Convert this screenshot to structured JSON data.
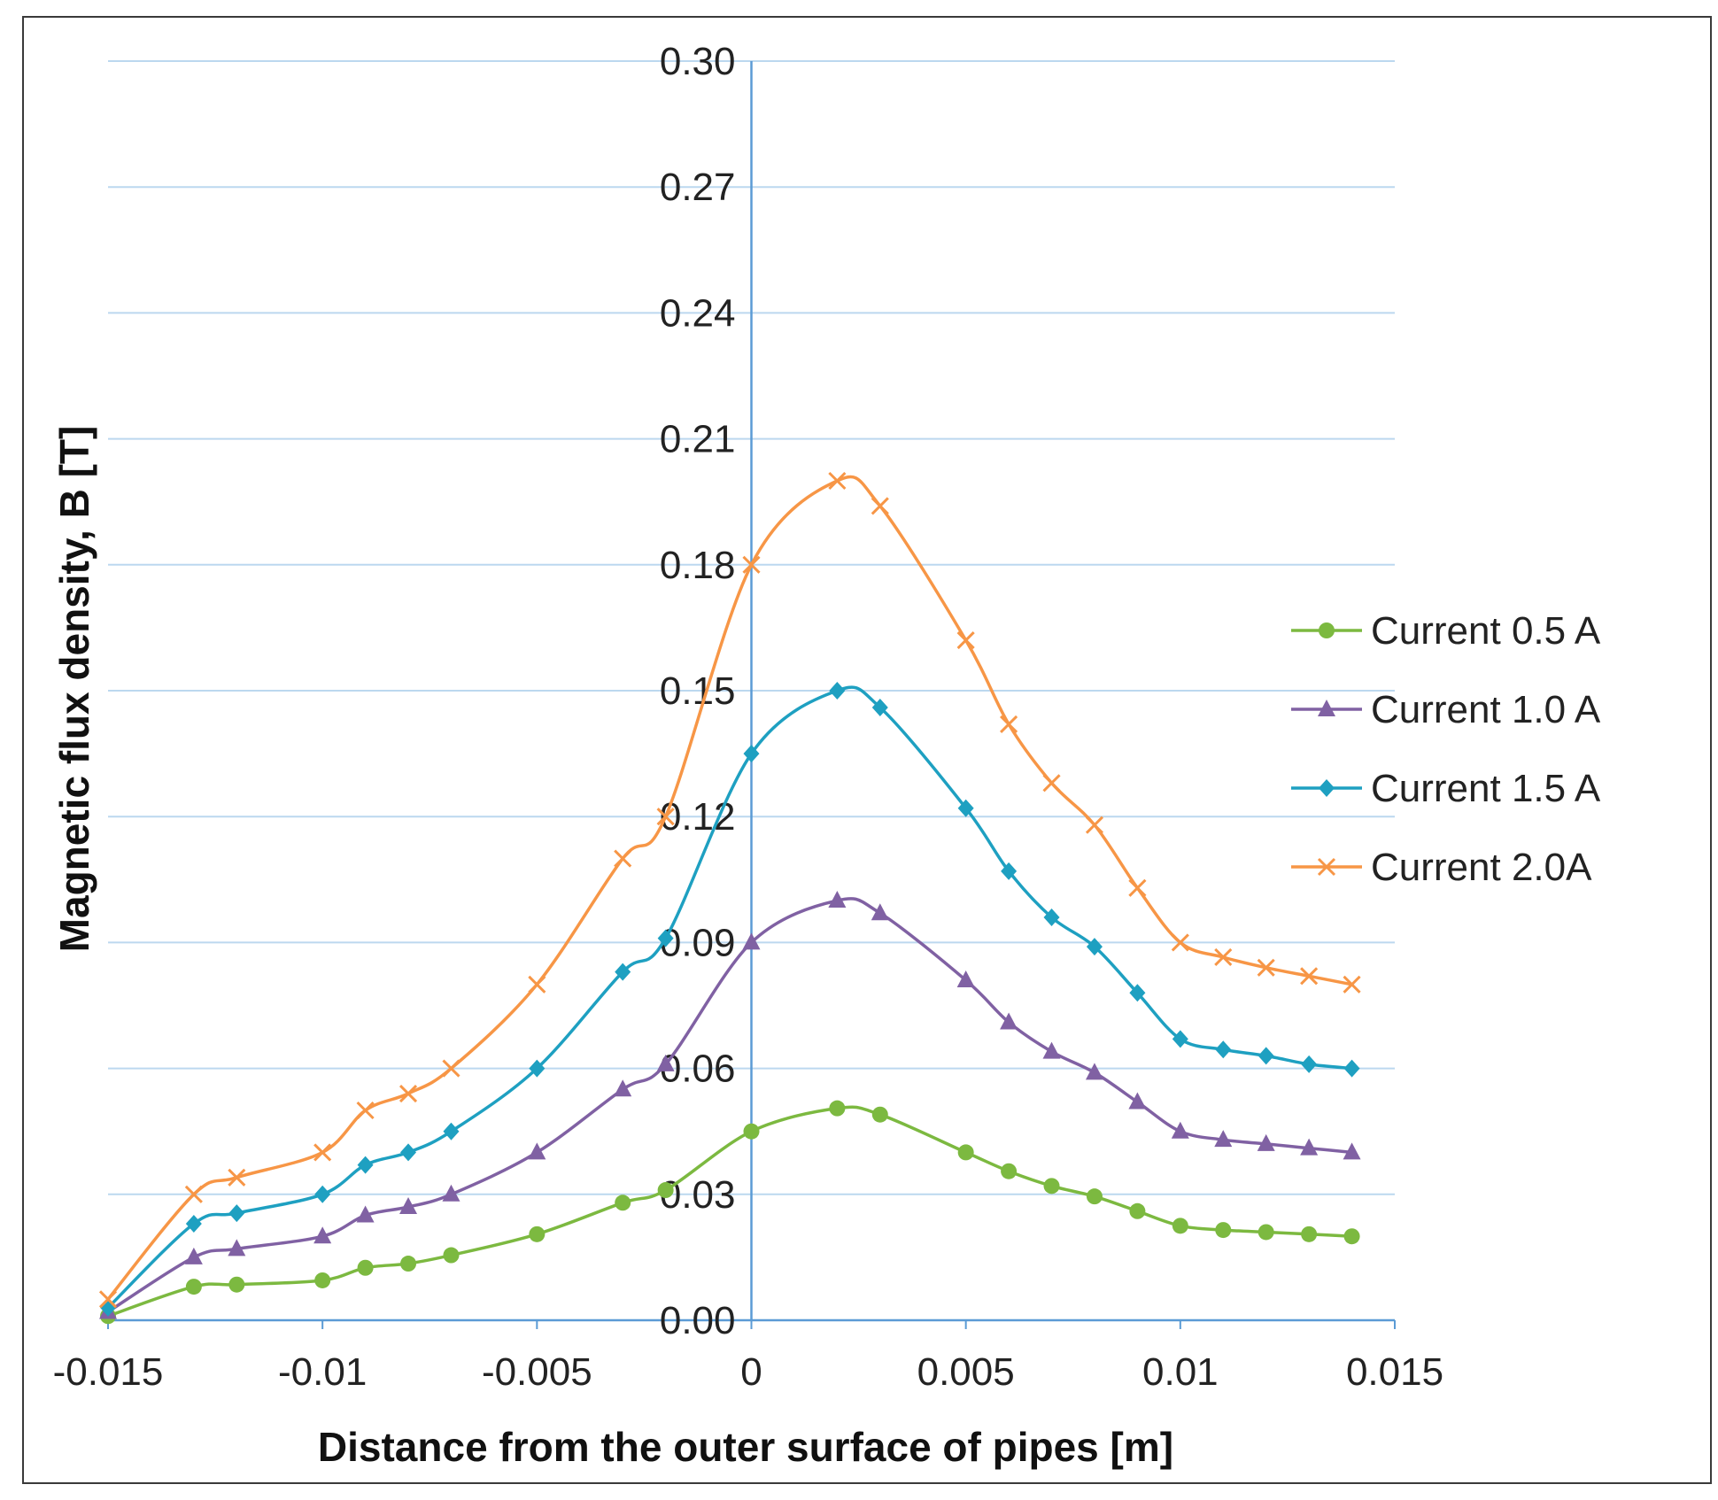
{
  "chart_data": {
    "type": "line",
    "title": "",
    "xlabel": "Distance from the outer surface of pipes [m]",
    "ylabel": "Magnetic flux density, B [T]",
    "xlim": [
      -0.015,
      0.015
    ],
    "ylim": [
      0,
      0.3
    ],
    "x_ticks": [
      "-0.015",
      "-0.01",
      "-0.005",
      "0",
      "0.005",
      "0.01",
      "0.015"
    ],
    "x_tick_values": [
      -0.015,
      -0.01,
      -0.005,
      0,
      0.005,
      0.01,
      0.015
    ],
    "y_ticks": [
      "0.00",
      "0.03",
      "0.06",
      "0.09",
      "0.12",
      "0.15",
      "0.18",
      "0.21",
      "0.24",
      "0.27",
      "0.30"
    ],
    "y_tick_values": [
      0,
      0.03,
      0.06,
      0.09,
      0.12,
      0.15,
      0.18,
      0.21,
      0.24,
      0.27,
      0.3
    ],
    "grid": true,
    "legend_position": "right",
    "x": [
      -0.015,
      -0.013,
      -0.012,
      -0.01,
      -0.009,
      -0.008,
      -0.007,
      -0.005,
      -0.003,
      -0.002,
      0,
      0.002,
      0.003,
      0.005,
      0.006,
      0.007,
      0.008,
      0.009,
      0.01,
      0.011,
      0.012,
      0.013,
      0.014
    ],
    "series": [
      {
        "name": "Current 0.5 A",
        "color": "#7cb940",
        "marker": "circle",
        "values": [
          0.001,
          0.008,
          0.0085,
          0.0095,
          0.0125,
          0.0135,
          0.0155,
          0.0205,
          0.028,
          0.031,
          0.045,
          0.0505,
          0.049,
          0.04,
          0.0355,
          0.032,
          0.0295,
          0.026,
          0.0225,
          0.0215,
          0.021,
          0.0205,
          0.02
        ]
      },
      {
        "name": "Current 1.0 A",
        "color": "#8061a3",
        "marker": "triangle",
        "values": [
          0.002,
          0.015,
          0.017,
          0.02,
          0.025,
          0.027,
          0.03,
          0.04,
          0.055,
          0.061,
          0.09,
          0.1,
          0.097,
          0.081,
          0.071,
          0.064,
          0.059,
          0.052,
          0.045,
          0.043,
          0.042,
          0.041,
          0.04
        ]
      },
      {
        "name": "Current 1.5 A",
        "color": "#1ea0c1",
        "marker": "diamond",
        "values": [
          0.003,
          0.023,
          0.0255,
          0.03,
          0.037,
          0.04,
          0.045,
          0.06,
          0.083,
          0.091,
          0.135,
          0.15,
          0.146,
          0.122,
          0.107,
          0.096,
          0.089,
          0.078,
          0.067,
          0.0645,
          0.063,
          0.061,
          0.06
        ]
      },
      {
        "name": "Current 2.0A",
        "color": "#f79646",
        "marker": "x",
        "values": [
          0.005,
          0.03,
          0.034,
          0.04,
          0.05,
          0.054,
          0.06,
          0.08,
          0.11,
          0.12,
          0.18,
          0.2,
          0.194,
          0.162,
          0.142,
          0.128,
          0.118,
          0.103,
          0.09,
          0.0865,
          0.084,
          0.082,
          0.08
        ]
      }
    ]
  }
}
